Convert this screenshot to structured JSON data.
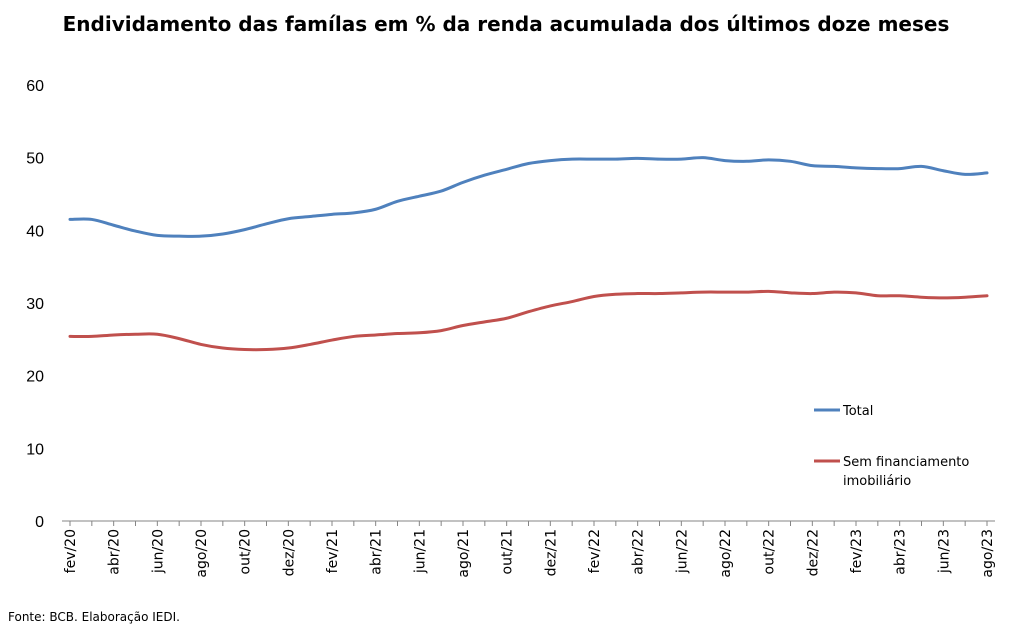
{
  "chart_data": {
    "type": "line",
    "title": "Endividamento das famílas em % da renda acumulada dos últimos doze meses",
    "source": "Fonte: BCB. Elaboração IEDI.",
    "ylim": [
      0,
      60
    ],
    "yticks": [
      "0",
      "10",
      "20",
      "30",
      "40",
      "50",
      "60"
    ],
    "grid": false,
    "legend_position": "right",
    "x": [
      "fev/20",
      "mar/20",
      "abr/20",
      "mai/20",
      "jun/20",
      "jul/20",
      "ago/20",
      "set/20",
      "out/20",
      "nov/20",
      "dez/20",
      "jan/21",
      "fev/21",
      "mar/21",
      "abr/21",
      "mai/21",
      "jun/21",
      "jul/21",
      "ago/21",
      "set/21",
      "out/21",
      "nov/21",
      "dez/21",
      "jan/22",
      "fev/22",
      "mar/22",
      "abr/22",
      "mai/22",
      "jun/22",
      "jul/22",
      "ago/22",
      "set/22",
      "out/22",
      "nov/22",
      "dez/22",
      "jan/23",
      "fev/23",
      "mar/23",
      "abr/23",
      "mai/23",
      "jun/23",
      "jul/23",
      "ago/23"
    ],
    "xtick_labels": [
      "fev/20",
      "abr/20",
      "jun/20",
      "ago/20",
      "out/20",
      "dez/20",
      "fev/21",
      "abr/21",
      "jun/21",
      "ago/21",
      "out/21",
      "dez/21",
      "fev/22",
      "abr/22",
      "jun/22",
      "ago/22",
      "out/22",
      "dez/22",
      "fev/23",
      "abr/23",
      "jun/23",
      "ago/23"
    ],
    "series": [
      {
        "name": "Total",
        "color": "#4F81BD",
        "values": [
          41.5,
          41.5,
          40.7,
          39.9,
          39.3,
          39.2,
          39.2,
          39.5,
          40.1,
          40.9,
          41.6,
          41.9,
          42.2,
          42.4,
          42.9,
          44.0,
          44.7,
          45.4,
          46.6,
          47.6,
          48.4,
          49.2,
          49.6,
          49.8,
          49.8,
          49.8,
          49.9,
          49.8,
          49.8,
          50.0,
          49.6,
          49.5,
          49.7,
          49.5,
          48.9,
          48.8,
          48.6,
          48.5,
          48.5,
          48.8,
          48.2,
          47.7,
          47.9
        ]
      },
      {
        "name": "Sem financiamento imobiliário",
        "color": "#C0504D",
        "values": [
          25.4,
          25.4,
          25.6,
          25.7,
          25.7,
          25.1,
          24.3,
          23.8,
          23.6,
          23.6,
          23.8,
          24.3,
          24.9,
          25.4,
          25.6,
          25.8,
          25.9,
          26.2,
          26.9,
          27.4,
          27.9,
          28.8,
          29.6,
          30.2,
          30.9,
          31.2,
          31.3,
          31.3,
          31.4,
          31.5,
          31.5,
          31.5,
          31.6,
          31.4,
          31.3,
          31.5,
          31.4,
          31.0,
          31.0,
          30.8,
          30.7,
          30.8,
          31.0
        ]
      }
    ]
  }
}
